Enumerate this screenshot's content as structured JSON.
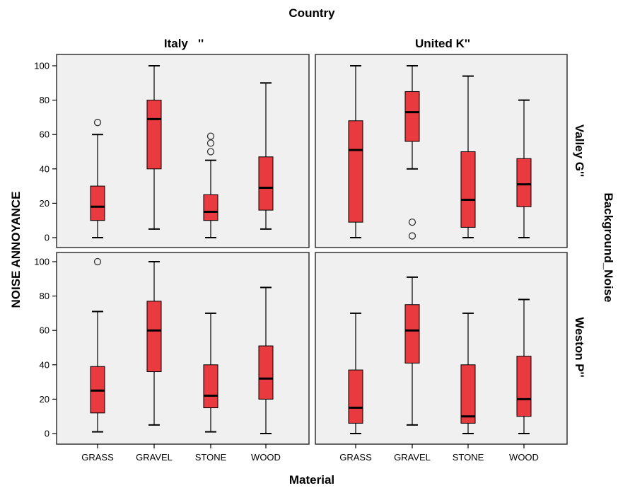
{
  "chart_data": {
    "type": "boxplot",
    "title": "Country",
    "xlabel": "Material",
    "ylabel": "NOISE ANNOYANCE",
    "row_label": "Background_Noise",
    "columns": [
      "Italy   ''",
      "United K''"
    ],
    "rows": [
      "Valley G''",
      "Weston P''"
    ],
    "categories": [
      "GRASS",
      "GRAVEL",
      "STONE",
      "WOOD"
    ],
    "ylim": [
      0,
      100
    ],
    "yticks": [
      0,
      20,
      40,
      60,
      80,
      100
    ],
    "box_color": "#e83a3f",
    "panel_background": "#f0f0f0",
    "panels": [
      {
        "column": "Italy   ''",
        "row": "Valley G''",
        "boxes": [
          {
            "category": "GRASS",
            "min": 0,
            "q1": 10,
            "median": 18,
            "q3": 30,
            "max": 60,
            "outliers": [
              67
            ]
          },
          {
            "category": "GRAVEL",
            "min": 5,
            "q1": 40,
            "median": 69,
            "q3": 80,
            "max": 100,
            "outliers": []
          },
          {
            "category": "STONE",
            "min": 0,
            "q1": 10,
            "median": 15,
            "q3": 25,
            "max": 45,
            "outliers": [
              50,
              55,
              59
            ]
          },
          {
            "category": "WOOD",
            "min": 5,
            "q1": 16,
            "median": 29,
            "q3": 47,
            "max": 90,
            "outliers": []
          }
        ]
      },
      {
        "column": "United K''",
        "row": "Valley G''",
        "boxes": [
          {
            "category": "GRASS",
            "min": 0,
            "q1": 9,
            "median": 51,
            "q3": 68,
            "max": 100,
            "outliers": []
          },
          {
            "category": "GRAVEL",
            "min": 40,
            "q1": 56,
            "median": 73,
            "q3": 85,
            "max": 100,
            "outliers": [
              1,
              9
            ]
          },
          {
            "category": "STONE",
            "min": 0,
            "q1": 6,
            "median": 22,
            "q3": 50,
            "max": 94,
            "outliers": []
          },
          {
            "category": "WOOD",
            "min": 0,
            "q1": 18,
            "median": 31,
            "q3": 46,
            "max": 80,
            "outliers": []
          }
        ]
      },
      {
        "column": "Italy   ''",
        "row": "Weston P''",
        "boxes": [
          {
            "category": "GRASS",
            "min": 1,
            "q1": 12,
            "median": 25,
            "q3": 39,
            "max": 71,
            "outliers": [
              100
            ]
          },
          {
            "category": "GRAVEL",
            "min": 5,
            "q1": 36,
            "median": 60,
            "q3": 77,
            "max": 100,
            "outliers": []
          },
          {
            "category": "STONE",
            "min": 1,
            "q1": 15,
            "median": 22,
            "q3": 40,
            "max": 70,
            "outliers": []
          },
          {
            "category": "WOOD",
            "min": 0,
            "q1": 20,
            "median": 32,
            "q3": 51,
            "max": 85,
            "outliers": []
          }
        ]
      },
      {
        "column": "United K''",
        "row": "Weston P''",
        "boxes": [
          {
            "category": "GRASS",
            "min": 0,
            "q1": 6,
            "median": 15,
            "q3": 37,
            "max": 70,
            "outliers": []
          },
          {
            "category": "GRAVEL",
            "min": 5,
            "q1": 41,
            "median": 60,
            "q3": 75,
            "max": 91,
            "outliers": []
          },
          {
            "category": "STONE",
            "min": 0,
            "q1": 6,
            "median": 10,
            "q3": 40,
            "max": 70,
            "outliers": []
          },
          {
            "category": "WOOD",
            "min": 0,
            "q1": 10,
            "median": 20,
            "q3": 45,
            "max": 78,
            "outliers": []
          }
        ]
      }
    ]
  }
}
